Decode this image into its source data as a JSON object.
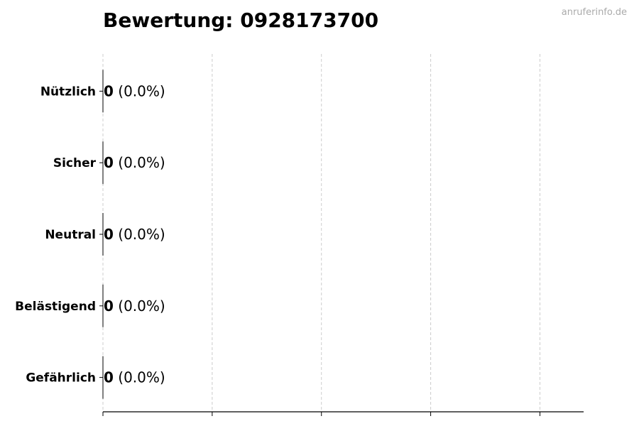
{
  "chart_data": {
    "type": "bar",
    "orientation": "horizontal",
    "title": "Bewertung: 0928173700",
    "watermark": "anruferinfo.de",
    "categories": [
      "Nützlich",
      "Sicher",
      "Neutral",
      "Belästigend",
      "Gefährlich"
    ],
    "values": [
      0,
      0,
      0,
      0,
      0
    ],
    "labels": [
      {
        "count": "0",
        "percent": "(0.0%)"
      },
      {
        "count": "0",
        "percent": "(0.0%)"
      },
      {
        "count": "0",
        "percent": "(0.0%)"
      },
      {
        "count": "0",
        "percent": "(0.0%)"
      },
      {
        "count": "0",
        "percent": "(0.0%)"
      }
    ],
    "xlim": [
      0,
      4.4
    ],
    "xticks": [
      0,
      1,
      2,
      3,
      4
    ],
    "xtick_labels_shown": false,
    "grid": "x, dashed",
    "legend": "none",
    "colors": {
      "bar_edge": "#000000",
      "grid": "#cccccc",
      "watermark": "#aaaaaa"
    }
  }
}
